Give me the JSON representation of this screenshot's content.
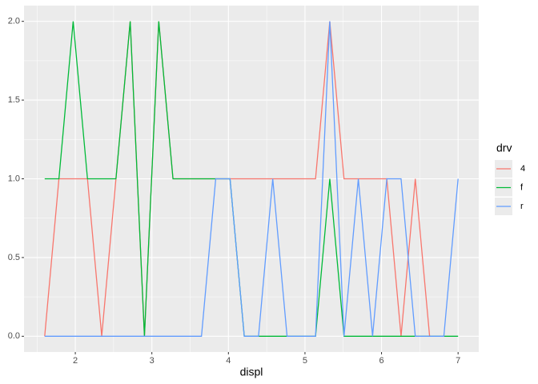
{
  "chart_data": {
    "type": "line",
    "x_label": "displ",
    "legend_title": "drv",
    "x": [
      1.6,
      1.786,
      1.972,
      2.159,
      2.345,
      2.531,
      2.717,
      2.903,
      3.09,
      3.276,
      3.462,
      3.648,
      3.834,
      4.021,
      4.207,
      4.393,
      4.579,
      4.766,
      4.952,
      5.138,
      5.324,
      5.51,
      5.697,
      5.883,
      6.069,
      6.255,
      6.441,
      6.628,
      6.814,
      7.0
    ],
    "series": [
      {
        "name": "4",
        "color": "#F8766D",
        "values": [
          0,
          1,
          1,
          1,
          0,
          1,
          2,
          0,
          2,
          1,
          1,
          1,
          1,
          1,
          1,
          1,
          1,
          1,
          1,
          1,
          2,
          1,
          1,
          1,
          1,
          0,
          1,
          0,
          null,
          null
        ]
      },
      {
        "name": "f",
        "color": "#00BA38",
        "values": [
          1,
          1,
          2,
          1,
          1,
          1,
          2,
          0,
          2,
          1,
          1,
          1,
          1,
          1,
          0,
          0,
          0,
          0,
          0,
          0,
          1,
          0,
          0,
          0,
          0,
          0,
          0,
          0,
          0,
          0
        ]
      },
      {
        "name": "r",
        "color": "#619CFF",
        "values": [
          0,
          0,
          0,
          0,
          0,
          0,
          0,
          0,
          0,
          0,
          0,
          0,
          1,
          1,
          0,
          0,
          1,
          0,
          0,
          0,
          2,
          0,
          1,
          0,
          1,
          1,
          0,
          0,
          0,
          1
        ]
      }
    ],
    "xlim": [
      1.33,
      7.27
    ],
    "ylim": [
      -0.1,
      2.1
    ],
    "xticks": [
      2,
      3,
      4,
      5,
      6,
      7
    ],
    "yticks": [
      {
        "value": 0,
        "label": "0.0"
      },
      {
        "value": 0.5,
        "label": "0.5"
      },
      {
        "value": 1,
        "label": "1.0"
      },
      {
        "value": 1.5,
        "label": "1.5"
      },
      {
        "value": 2,
        "label": "2.0"
      }
    ],
    "grid": true,
    "legend_position": "right"
  }
}
